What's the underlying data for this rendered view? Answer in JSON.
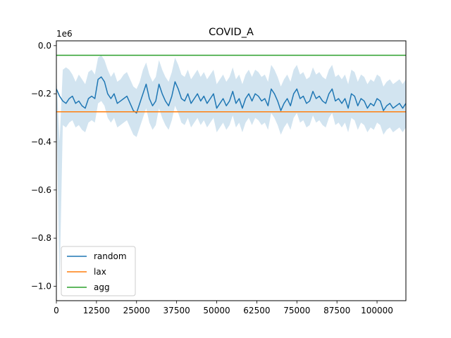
{
  "chart_data": {
    "type": "line",
    "title": "COVID_A",
    "xlabel": "",
    "ylabel": "",
    "y_offset_label": "1e6",
    "xlim": [
      0,
      109000
    ],
    "ylim": [
      -1.06,
      0.02
    ],
    "grid": false,
    "legend_position": "lower-left",
    "x_ticks": [
      0,
      12500,
      25000,
      37500,
      50000,
      62500,
      75000,
      87500,
      100000
    ],
    "x_tick_labels": [
      "0",
      "12500",
      "25000",
      "37500",
      "50000",
      "62500",
      "75000",
      "87500",
      "100000"
    ],
    "y_ticks": [
      0.0,
      -0.2,
      -0.4,
      -0.6,
      -0.8,
      -1.0
    ],
    "y_tick_labels": [
      "0.0",
      "−0.2",
      "−0.4",
      "−0.6",
      "−0.8",
      "−1.0"
    ],
    "series": [
      {
        "name": "random",
        "color": "#1f77b4",
        "shaded_band_color": "#1f77b4",
        "x": [
          0,
          1000,
          2000,
          3000,
          4000,
          5000,
          6000,
          7000,
          8000,
          9000,
          10000,
          11000,
          12000,
          13000,
          14000,
          15000,
          16000,
          17000,
          18000,
          19000,
          20000,
          21000,
          22000,
          23000,
          24000,
          25000,
          26000,
          27000,
          28000,
          29000,
          30000,
          31000,
          32000,
          33000,
          34000,
          35000,
          36000,
          37000,
          38000,
          39000,
          40000,
          41000,
          42000,
          43000,
          44000,
          45000,
          46000,
          47000,
          48000,
          49000,
          50000,
          51000,
          52000,
          53000,
          54000,
          55000,
          56000,
          57000,
          58000,
          59000,
          60000,
          61000,
          62000,
          63000,
          64000,
          65000,
          66000,
          67000,
          68000,
          69000,
          70000,
          71000,
          72000,
          73000,
          74000,
          75000,
          76000,
          77000,
          78000,
          79000,
          80000,
          81000,
          82000,
          83000,
          84000,
          85000,
          86000,
          87000,
          88000,
          89000,
          90000,
          91000,
          92000,
          93000,
          94000,
          95000,
          96000,
          97000,
          98000,
          99000,
          100000,
          101000,
          102000,
          103000,
          104000,
          105000,
          106000,
          107000,
          108000,
          109000
        ],
        "values": [
          -0.18,
          -0.21,
          -0.23,
          -0.24,
          -0.22,
          -0.21,
          -0.24,
          -0.23,
          -0.25,
          -0.26,
          -0.22,
          -0.21,
          -0.22,
          -0.14,
          -0.13,
          -0.15,
          -0.2,
          -0.22,
          -0.2,
          -0.24,
          -0.23,
          -0.22,
          -0.21,
          -0.24,
          -0.27,
          -0.28,
          -0.24,
          -0.2,
          -0.16,
          -0.22,
          -0.25,
          -0.23,
          -0.16,
          -0.2,
          -0.23,
          -0.25,
          -0.21,
          -0.15,
          -0.18,
          -0.22,
          -0.23,
          -0.2,
          -0.24,
          -0.22,
          -0.2,
          -0.23,
          -0.21,
          -0.24,
          -0.22,
          -0.2,
          -0.26,
          -0.24,
          -0.22,
          -0.25,
          -0.23,
          -0.19,
          -0.24,
          -0.22,
          -0.26,
          -0.22,
          -0.2,
          -0.23,
          -0.2,
          -0.21,
          -0.23,
          -0.22,
          -0.25,
          -0.18,
          -0.2,
          -0.23,
          -0.27,
          -0.24,
          -0.22,
          -0.25,
          -0.2,
          -0.18,
          -0.22,
          -0.21,
          -0.24,
          -0.23,
          -0.19,
          -0.22,
          -0.21,
          -0.23,
          -0.24,
          -0.2,
          -0.18,
          -0.23,
          -0.22,
          -0.24,
          -0.22,
          -0.26,
          -0.2,
          -0.21,
          -0.25,
          -0.22,
          -0.23,
          -0.26,
          -0.24,
          -0.25,
          -0.22,
          -0.23,
          -0.27,
          -0.25,
          -0.24,
          -0.26,
          -0.25,
          -0.24,
          -0.26,
          -0.24
        ],
        "band_upper": [
          -0.12,
          -0.4,
          -0.1,
          -0.09,
          -0.1,
          -0.12,
          -0.15,
          -0.12,
          -0.14,
          -0.16,
          -0.11,
          -0.1,
          -0.12,
          -0.05,
          -0.04,
          -0.06,
          -0.1,
          -0.13,
          -0.11,
          -0.15,
          -0.14,
          -0.12,
          -0.11,
          -0.14,
          -0.17,
          -0.18,
          -0.15,
          -0.1,
          -0.07,
          -0.12,
          -0.15,
          -0.13,
          -0.06,
          -0.1,
          -0.13,
          -0.15,
          -0.11,
          -0.05,
          -0.08,
          -0.12,
          -0.13,
          -0.1,
          -0.14,
          -0.12,
          -0.1,
          -0.13,
          -0.11,
          -0.14,
          -0.12,
          -0.1,
          -0.16,
          -0.14,
          -0.12,
          -0.15,
          -0.13,
          -0.09,
          -0.14,
          -0.12,
          -0.16,
          -0.12,
          -0.1,
          -0.13,
          -0.1,
          -0.11,
          -0.13,
          -0.12,
          -0.15,
          -0.08,
          -0.1,
          -0.13,
          -0.17,
          -0.14,
          -0.12,
          -0.15,
          -0.1,
          -0.08,
          -0.12,
          -0.11,
          -0.14,
          -0.13,
          -0.09,
          -0.12,
          -0.11,
          -0.13,
          -0.14,
          -0.1,
          -0.08,
          -0.13,
          -0.12,
          -0.14,
          -0.12,
          -0.16,
          -0.1,
          -0.11,
          -0.15,
          -0.12,
          -0.13,
          -0.16,
          -0.14,
          -0.15,
          -0.12,
          -0.13,
          -0.17,
          -0.15,
          -0.14,
          -0.16,
          -0.15,
          -0.14,
          -0.16,
          -0.14
        ],
        "band_lower": [
          -0.25,
          -1.0,
          -0.33,
          -0.34,
          -0.32,
          -0.31,
          -0.34,
          -0.33,
          -0.35,
          -0.36,
          -0.32,
          -0.31,
          -0.32,
          -0.24,
          -0.23,
          -0.25,
          -0.3,
          -0.32,
          -0.3,
          -0.34,
          -0.33,
          -0.32,
          -0.31,
          -0.34,
          -0.37,
          -0.38,
          -0.34,
          -0.3,
          -0.26,
          -0.32,
          -0.35,
          -0.33,
          -0.26,
          -0.3,
          -0.33,
          -0.35,
          -0.31,
          -0.25,
          -0.28,
          -0.32,
          -0.33,
          -0.3,
          -0.34,
          -0.32,
          -0.3,
          -0.33,
          -0.31,
          -0.34,
          -0.32,
          -0.3,
          -0.36,
          -0.34,
          -0.32,
          -0.35,
          -0.33,
          -0.29,
          -0.34,
          -0.32,
          -0.36,
          -0.32,
          -0.3,
          -0.33,
          -0.3,
          -0.31,
          -0.33,
          -0.32,
          -0.35,
          -0.28,
          -0.3,
          -0.33,
          -0.37,
          -0.34,
          -0.32,
          -0.35,
          -0.3,
          -0.28,
          -0.32,
          -0.31,
          -0.34,
          -0.33,
          -0.29,
          -0.32,
          -0.31,
          -0.33,
          -0.34,
          -0.3,
          -0.28,
          -0.33,
          -0.32,
          -0.34,
          -0.32,
          -0.36,
          -0.3,
          -0.31,
          -0.35,
          -0.32,
          -0.33,
          -0.36,
          -0.34,
          -0.35,
          -0.32,
          -0.33,
          -0.37,
          -0.35,
          -0.34,
          -0.36,
          -0.35,
          -0.34,
          -0.36,
          -0.34
        ]
      },
      {
        "name": "lax",
        "color": "#ff7f0e",
        "constant": -0.275
      },
      {
        "name": "agg",
        "color": "#2ca02c",
        "constant": -0.04
      }
    ]
  }
}
